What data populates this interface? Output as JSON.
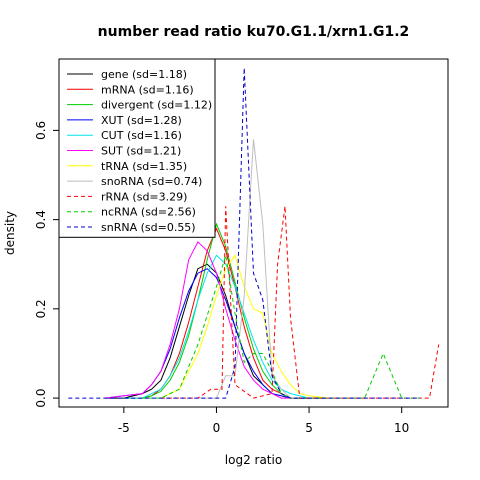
{
  "chart_data": {
    "type": "line",
    "title": "number read ratio ku70.G1.1/xrn1.G1.2",
    "xlabel": "log2 ratio",
    "ylabel": "density",
    "xlim": [
      -8.5,
      12.5
    ],
    "ylim": [
      -0.02,
      0.76
    ],
    "xticks": [
      -5,
      0,
      5,
      10
    ],
    "yticks": [
      0.0,
      0.2,
      0.4,
      0.6
    ],
    "ytick_labels": [
      "0.0",
      "0.2",
      "0.4",
      "0.6"
    ],
    "legend_position": "top-left",
    "series": [
      {
        "name": "gene (sd=1.18)",
        "color": "#000000",
        "dash": "solid",
        "x": [
          -6,
          -5,
          -4,
          -3.5,
          -3,
          -2.5,
          -2,
          -1.5,
          -1,
          -0.5,
          0,
          0.5,
          1,
          1.5,
          2,
          2.5,
          3,
          3.5,
          4,
          5,
          6
        ],
        "y": [
          0,
          0,
          0.01,
          0.02,
          0.04,
          0.09,
          0.16,
          0.23,
          0.29,
          0.3,
          0.28,
          0.23,
          0.16,
          0.1,
          0.05,
          0.03,
          0.01,
          0.005,
          0,
          0,
          0
        ]
      },
      {
        "name": "mRNA (sd=1.16)",
        "color": "#ff0000",
        "dash": "solid",
        "x": [
          -5,
          -4,
          -3.5,
          -3,
          -2.5,
          -2,
          -1.5,
          -1,
          -0.5,
          0,
          0.5,
          1,
          1.5,
          2,
          2.5,
          3,
          3.5,
          4,
          5
        ],
        "y": [
          0,
          0,
          0.005,
          0.02,
          0.05,
          0.1,
          0.17,
          0.25,
          0.33,
          0.38,
          0.33,
          0.25,
          0.16,
          0.09,
          0.04,
          0.02,
          0.01,
          0,
          0
        ]
      },
      {
        "name": "divergent (sd=1.12)",
        "color": "#00cd00",
        "dash": "solid",
        "x": [
          -5,
          -4,
          -3.5,
          -3,
          -2.5,
          -2,
          -1.5,
          -1,
          -0.5,
          0,
          0.5,
          1,
          1.5,
          2,
          2.5,
          3,
          3.5,
          4,
          5
        ],
        "y": [
          0,
          0,
          0.005,
          0.015,
          0.04,
          0.08,
          0.14,
          0.22,
          0.31,
          0.39,
          0.34,
          0.26,
          0.18,
          0.11,
          0.06,
          0.03,
          0.01,
          0,
          0
        ]
      },
      {
        "name": "XUT (sd=1.28)",
        "color": "#0000ff",
        "dash": "solid",
        "x": [
          -6,
          -5,
          -4,
          -3.5,
          -3,
          -2.5,
          -2,
          -1.5,
          -1,
          -0.5,
          0,
          0.5,
          1,
          1.5,
          2,
          2.5,
          3,
          3.5,
          4,
          5
        ],
        "y": [
          0,
          0.005,
          0.01,
          0.03,
          0.06,
          0.11,
          0.18,
          0.24,
          0.28,
          0.29,
          0.27,
          0.22,
          0.16,
          0.1,
          0.06,
          0.03,
          0.01,
          0.005,
          0,
          0
        ]
      },
      {
        "name": "CUT (sd=1.16)",
        "color": "#00e5ee",
        "dash": "solid",
        "x": [
          -5,
          -4,
          -3.5,
          -3,
          -2.5,
          -2,
          -1.5,
          -1,
          -0.5,
          0,
          0.5,
          1,
          1.5,
          2,
          2.5,
          3,
          3.5,
          4,
          5
        ],
        "y": [
          0,
          0,
          0.01,
          0.02,
          0.05,
          0.09,
          0.15,
          0.22,
          0.28,
          0.32,
          0.3,
          0.25,
          0.19,
          0.13,
          0.08,
          0.04,
          0.02,
          0.01,
          0
        ]
      },
      {
        "name": "SUT (sd=1.21)",
        "color": "#ff00ff",
        "dash": "solid",
        "x": [
          -6,
          -5,
          -4,
          -3.5,
          -3,
          -2.5,
          -2,
          -1.5,
          -1,
          -0.5,
          0,
          0.5,
          1,
          1.5,
          2,
          2.5,
          3,
          3.5,
          4,
          5
        ],
        "y": [
          0,
          0.005,
          0.01,
          0.03,
          0.06,
          0.12,
          0.2,
          0.31,
          0.35,
          0.33,
          0.28,
          0.2,
          0.13,
          0.07,
          0.04,
          0.02,
          0.01,
          0,
          0,
          0
        ]
      },
      {
        "name": "tRNA (sd=1.35)",
        "color": "#ffff00",
        "dash": "solid",
        "x": [
          -3,
          -2,
          -1.5,
          -1,
          -0.5,
          0,
          0.5,
          1,
          1.5,
          2,
          2.5,
          3,
          3.5,
          4,
          4.5,
          5,
          6
        ],
        "y": [
          0,
          0.02,
          0.06,
          0.1,
          0.16,
          0.23,
          0.29,
          0.32,
          0.25,
          0.2,
          0.19,
          0.1,
          0.06,
          0.03,
          0.01,
          0.005,
          0
        ]
      },
      {
        "name": "snoRNA (sd=0.74)",
        "color": "#bebebe",
        "dash": "solid",
        "x": [
          -1,
          0,
          0.5,
          1,
          1.5,
          2,
          2.5,
          3,
          3.5,
          4,
          5
        ],
        "y": [
          0,
          0,
          0.05,
          0.05,
          0.23,
          0.58,
          0.39,
          0.05,
          0.02,
          0,
          0
        ]
      },
      {
        "name": "rRNA (sd=3.29)",
        "color": "#ff0000",
        "dash": "dashed",
        "x": [
          -3,
          -2,
          -1,
          -0.3,
          0.3,
          0.5,
          1,
          2,
          3,
          3.3,
          3.7,
          4,
          4.5,
          6,
          8,
          11,
          11.5,
          12
        ],
        "y": [
          0,
          0,
          0,
          0.02,
          0.02,
          0.43,
          0.03,
          0,
          0.01,
          0.3,
          0.43,
          0.18,
          0,
          0,
          0,
          0,
          0,
          0.12
        ]
      },
      {
        "name": "ncRNA (sd=2.56)",
        "color": "#00cd00",
        "dash": "dashed",
        "x": [
          -4,
          -3,
          -2,
          -1,
          0,
          0.5,
          1,
          1.5,
          2,
          2.5,
          3,
          3.5,
          4,
          5,
          8,
          9,
          10,
          11
        ],
        "y": [
          0,
          0,
          0.02,
          0.12,
          0.25,
          0.32,
          0.19,
          0.08,
          0.1,
          0.1,
          0.06,
          0.01,
          0,
          0,
          0,
          0.1,
          0,
          0
        ]
      },
      {
        "name": "snRNA (sd=0.55)",
        "color": "#0000cd",
        "dash": "dashed",
        "x": [
          -8,
          -1,
          0,
          0.5,
          1,
          1.5,
          2,
          2.5,
          3,
          3.5,
          4,
          5,
          11
        ],
        "y": [
          0,
          0,
          0,
          0,
          0.07,
          0.74,
          0.28,
          0.22,
          0.05,
          0.01,
          0,
          0,
          0
        ]
      }
    ]
  }
}
